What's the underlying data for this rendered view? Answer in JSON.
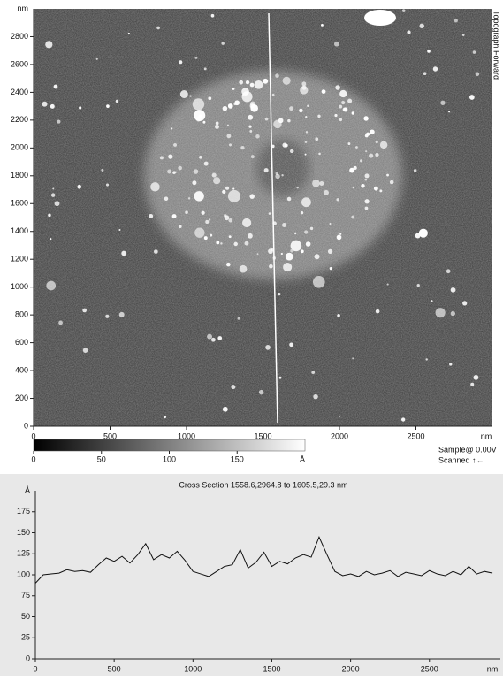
{
  "chart_data": [
    {
      "type": "image",
      "channel": "Topograph Forward",
      "x_label": "nm",
      "y_label": "nm",
      "xlim": [
        0,
        3000
      ],
      "ylim": [
        0,
        3000
      ],
      "xticks": [
        0,
        500,
        1000,
        1500,
        2000,
        2500
      ],
      "yticks": [
        0,
        200,
        400,
        600,
        800,
        1000,
        1200,
        1400,
        1600,
        1800,
        2000,
        2200,
        2400,
        2600,
        2800
      ],
      "colorbar": {
        "lim": [
          0,
          200
        ],
        "ticks": [
          0,
          50,
          100,
          150
        ],
        "label": "Å"
      },
      "sample_bias": "Sample@ 0.00V",
      "scan_direction": "Scanned ↑←"
    },
    {
      "type": "line",
      "title": "Cross Section 1558.6,2964.8 to 1605.5,29.3 nm",
      "x_label": "nm",
      "y_label": "Å",
      "xlim": [
        0,
        2950
      ],
      "ylim": [
        0,
        200
      ],
      "xticks": [
        0,
        500,
        1000,
        1500,
        2000,
        2500
      ],
      "yticks": [
        0,
        25,
        50,
        75,
        100,
        125,
        150,
        175
      ],
      "x": [
        0,
        50,
        100,
        150,
        200,
        250,
        300,
        350,
        400,
        450,
        500,
        550,
        600,
        650,
        700,
        750,
        800,
        850,
        900,
        950,
        1000,
        1050,
        1100,
        1150,
        1200,
        1250,
        1300,
        1350,
        1400,
        1450,
        1500,
        1550,
        1600,
        1650,
        1700,
        1750,
        1800,
        1850,
        1900,
        1950,
        2000,
        2050,
        2100,
        2150,
        2200,
        2250,
        2300,
        2350,
        2400,
        2450,
        2500,
        2550,
        2600,
        2650,
        2700,
        2750,
        2800,
        2850,
        2900
      ],
      "series": [
        {
          "color": "#111111",
          "values": [
            90,
            100,
            101,
            102,
            106,
            104,
            105,
            103,
            112,
            120,
            116,
            122,
            114,
            124,
            137,
            118,
            124,
            120,
            128,
            117,
            104,
            101,
            98,
            104,
            110,
            112,
            130,
            108,
            115,
            127,
            110,
            116,
            113,
            120,
            124,
            121,
            145,
            124,
            104,
            99,
            101,
            98,
            104,
            100,
            102,
            105,
            98,
            103,
            101,
            99,
            105,
            101,
            99,
            104,
            100,
            110,
            101,
            104,
            102
          ]
        }
      ]
    }
  ]
}
